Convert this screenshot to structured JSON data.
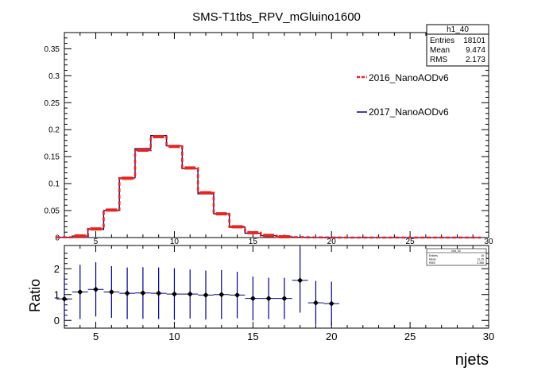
{
  "title": "SMS-T1tbs_RPV_mGluino1600",
  "colors": {
    "series_2016": "#e8241e",
    "series_2017": "#00008b",
    "ratio": "#00008b",
    "frame": "#000000"
  },
  "stats_box": {
    "name": "h1_40",
    "rows": [
      {
        "label": "Entries",
        "value": "18101"
      },
      {
        "label": "Mean",
        "value": "9.474"
      },
      {
        "label": "RMS",
        "value": "2.173"
      }
    ]
  },
  "mini_stats_box": {
    "name": "hist_40",
    "rows": [
      {
        "label": "Entries",
        "value": "19"
      },
      {
        "label": "Mean",
        "value": "11.25"
      },
      {
        "label": "RMS",
        "value": "3.388"
      }
    ]
  },
  "chart_data": [
    {
      "type": "step-histogram",
      "title": "SMS-T1tbs_RPV_mGluino1600",
      "xlim": [
        3,
        30
      ],
      "ylim": [
        0,
        0.38
      ],
      "x_ticks": [
        "5",
        "10",
        "15",
        "20",
        "25",
        "30"
      ],
      "y_ticks": [
        "0",
        "0.05",
        "0.1",
        "0.15",
        "0.2",
        "0.25",
        "0.3",
        "0.35"
      ],
      "legend_placement": "right",
      "series": [
        {
          "name": "2016_NanoAODv6",
          "style": "dashed-red-markers",
          "x": [
            3,
            4,
            5,
            6,
            7,
            8,
            9,
            10,
            11,
            12,
            13,
            14,
            15,
            16,
            17,
            18,
            19,
            20,
            21,
            22,
            23,
            24,
            25,
            26,
            27,
            28,
            29
          ],
          "values": [
            0.0005,
            0.003,
            0.016,
            0.051,
            0.11,
            0.162,
            0.187,
            0.169,
            0.129,
            0.083,
            0.044,
            0.02,
            0.009,
            0.004,
            0.0015,
            0.0007,
            0.0002,
            0.0001,
            0,
            0,
            0,
            0,
            0,
            0,
            0,
            0,
            0
          ]
        },
        {
          "name": "2017_NanoAODv6",
          "style": "solid-blue",
          "x": [
            3,
            4,
            5,
            6,
            7,
            8,
            9,
            10,
            11,
            12,
            13,
            14,
            15,
            16,
            17,
            18,
            19,
            20,
            21,
            22,
            23,
            24,
            25,
            26,
            27,
            28,
            29
          ],
          "values": [
            0.0004,
            0.0028,
            0.015,
            0.05,
            0.111,
            0.165,
            0.189,
            0.17,
            0.128,
            0.081,
            0.044,
            0.019,
            0.008,
            0.0035,
            0.0013,
            0.0004,
            0.0002,
            0.0001,
            0,
            0,
            0,
            0,
            0,
            0,
            0,
            0,
            0
          ]
        }
      ]
    },
    {
      "type": "scatter-errorbar",
      "title": "",
      "xlabel": "njets",
      "ylabel": "Ratio",
      "xlim": [
        3,
        30
      ],
      "ylim": [
        -0.3,
        2.9
      ],
      "x_ticks": [
        "5",
        "10",
        "15",
        "20",
        "25",
        "30"
      ],
      "y_ticks": [
        "0",
        "1",
        "2"
      ],
      "points": [
        {
          "x": 3,
          "y": 0.83,
          "err": 0.9
        },
        {
          "x": 4,
          "y": 1.1,
          "err": 1.05
        },
        {
          "x": 5,
          "y": 1.2,
          "err": 1.05
        },
        {
          "x": 6,
          "y": 1.1,
          "err": 1.0
        },
        {
          "x": 7,
          "y": 1.05,
          "err": 1.0
        },
        {
          "x": 8,
          "y": 1.06,
          "err": 1.0
        },
        {
          "x": 9,
          "y": 1.05,
          "err": 1.0
        },
        {
          "x": 10,
          "y": 1.02,
          "err": 1.0
        },
        {
          "x": 11,
          "y": 1.02,
          "err": 0.95
        },
        {
          "x": 12,
          "y": 0.98,
          "err": 0.95
        },
        {
          "x": 13,
          "y": 1.0,
          "err": 0.95
        },
        {
          "x": 14,
          "y": 0.98,
          "err": 0.9
        },
        {
          "x": 15,
          "y": 0.85,
          "err": 0.85
        },
        {
          "x": 16,
          "y": 0.85,
          "err": 0.8
        },
        {
          "x": 17,
          "y": 0.85,
          "err": 0.8
        },
        {
          "x": 18,
          "y": 1.55,
          "err": 1.25
        },
        {
          "x": 19,
          "y": 0.68,
          "err": 0.85
        },
        {
          "x": 20,
          "y": 0.65,
          "err": 0.85
        }
      ]
    }
  ]
}
